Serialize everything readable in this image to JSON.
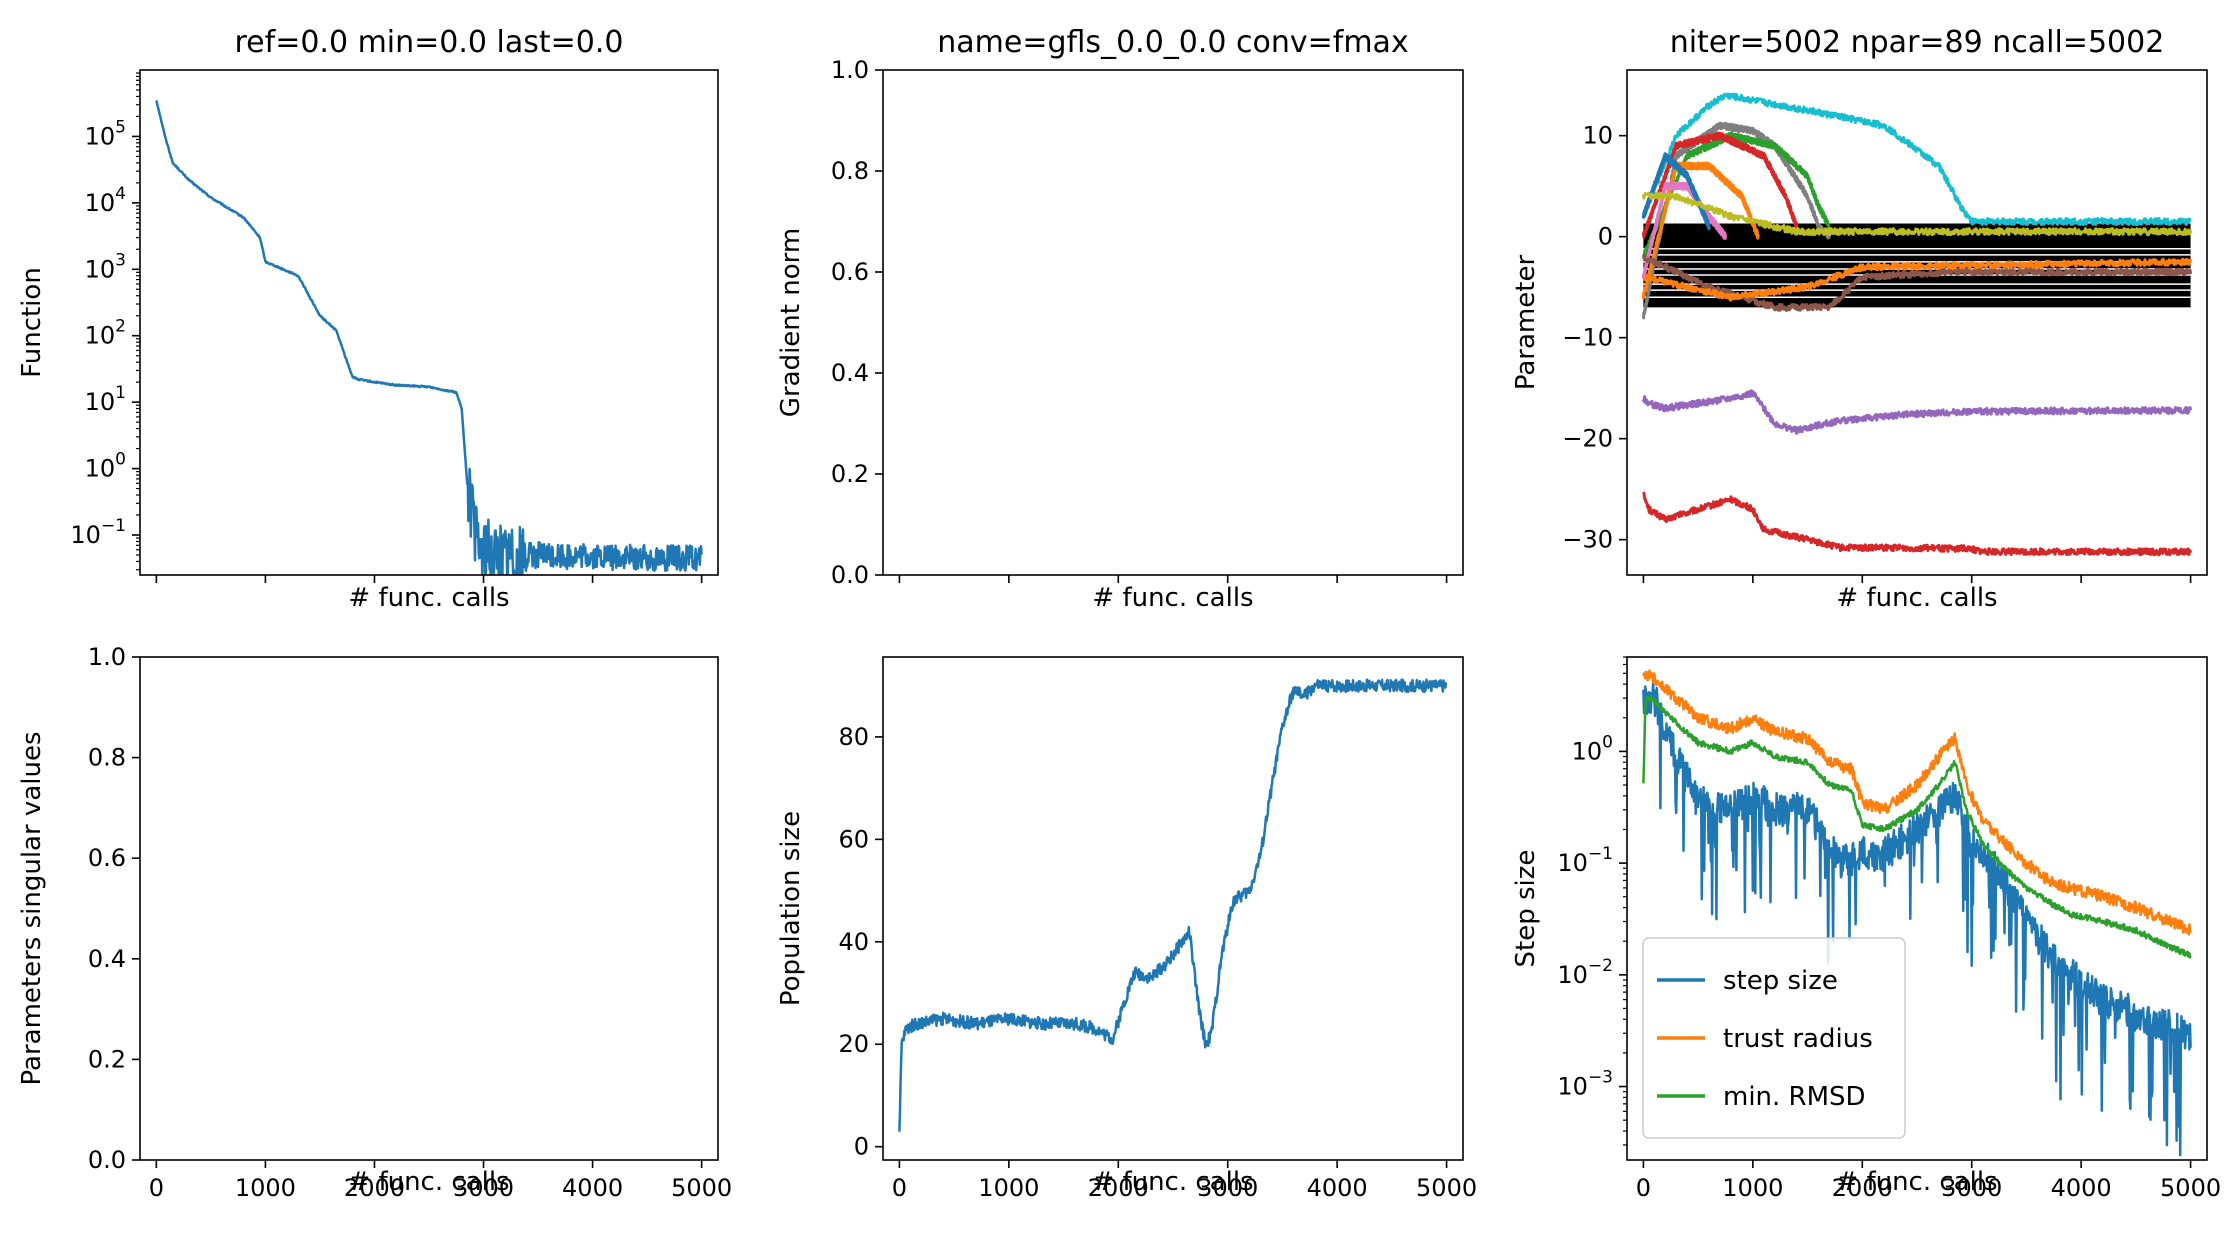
{
  "figure": {
    "colors": {
      "blue": "#1f77b4",
      "orange": "#ff7f0e",
      "green": "#2ca02c",
      "red": "#d62728",
      "purple": "#9467bd",
      "brown": "#8c564b",
      "pink": "#e377c2",
      "gray": "#7f7f7f",
      "olive": "#bcbd22",
      "cyan": "#17becf",
      "black": "#000000"
    }
  },
  "chart_data": [
    {
      "id": "function",
      "type": "line",
      "title": "ref=0.0  min=0.0  last=0.0",
      "xlabel": "# func. calls",
      "ylabel": "Function",
      "yscale": "log",
      "xlim": [
        -150,
        5150
      ],
      "ylim": [
        0.025,
        1000000
      ],
      "xticks": [
        0,
        1000,
        2000,
        3000,
        4000,
        5000
      ],
      "x_ticklabels_visible": false,
      "yticks": [
        0.1,
        1,
        10,
        100,
        1000,
        10000,
        100000
      ],
      "ytick_labels": [
        {
          "base": "10",
          "exp": "−1"
        },
        {
          "base": "10",
          "exp": "0"
        },
        {
          "base": "10",
          "exp": "1"
        },
        {
          "base": "10",
          "exp": "2"
        },
        {
          "base": "10",
          "exp": "3"
        },
        {
          "base": "10",
          "exp": "4"
        },
        {
          "base": "10",
          "exp": "5"
        }
      ],
      "series": [
        {
          "color": "#1f77b4",
          "noise_after": 2850,
          "x": [
            0,
            80,
            150,
            300,
            500,
            800,
            950,
            1000,
            1050,
            1300,
            1500,
            1650,
            1750,
            1800,
            1850,
            2000,
            2200,
            2500,
            2750,
            2800,
            2850,
            2950,
            3200,
            3500,
            3800,
            4200,
            4600,
            5000
          ],
          "y": [
            350000,
            100000,
            40000,
            22000,
            12000,
            6000,
            3000,
            1300,
            1200,
            800,
            200,
            120,
            40,
            24,
            22,
            20,
            18,
            17,
            14,
            8,
            0.6,
            0.06,
            0.05,
            0.05,
            0.048,
            0.046,
            0.045,
            0.045
          ]
        }
      ]
    },
    {
      "id": "gradient",
      "type": "line",
      "title": "name=gfls_0.0_0.0  conv=fmax",
      "xlabel": "# func. calls",
      "ylabel": "Gradient norm",
      "xlim": [
        -150,
        5150
      ],
      "ylim": [
        0,
        1
      ],
      "xticks": [
        0,
        1000,
        2000,
        3000,
        4000,
        5000
      ],
      "x_ticklabels_visible": false,
      "yticks": [
        0,
        0.2,
        0.4,
        0.6,
        0.8,
        1.0
      ],
      "ytick_labels": [
        "0.0",
        "0.2",
        "0.4",
        "0.6",
        "0.8",
        "1.0"
      ],
      "series": []
    },
    {
      "id": "parameter",
      "type": "line",
      "title": "niter=5002  npar=89  ncall=5002",
      "xlabel": "# func. calls",
      "ylabel": "Parameter",
      "xlim": [
        -150,
        5150
      ],
      "ylim": [
        -33.5,
        16.5
      ],
      "xticks": [
        0,
        1000,
        2000,
        3000,
        4000,
        5000
      ],
      "x_ticklabels_visible": false,
      "yticks": [
        -30,
        -20,
        -10,
        0,
        10
      ],
      "ytick_labels": [
        "−30",
        "−20",
        "−10",
        "0",
        "10"
      ],
      "band": {
        "color": "#000000",
        "x": [
          0,
          5000
        ],
        "y": [
          -7,
          1.3
        ]
      },
      "band_lines": {
        "color": "#ffffff",
        "y": [
          -1.2,
          -1.8,
          -2.5,
          -3.2,
          -3.8,
          -4.7,
          -5.3,
          -6.0
        ]
      },
      "series": [
        {
          "color": "#17becf",
          "x": [
            0,
            300,
            600,
            750,
            1000,
            1500,
            2200,
            2700,
            2900,
            3000,
            5000
          ],
          "y": [
            2,
            10,
            13,
            14,
            13.5,
            12.5,
            11,
            7,
            3,
            1.5,
            1.5
          ]
        },
        {
          "color": "#7f7f7f",
          "x": [
            0,
            300,
            700,
            1000,
            1200,
            1500,
            1600,
            1700
          ],
          "y": [
            -8,
            8,
            11,
            10.5,
            9,
            4,
            1,
            0
          ]
        },
        {
          "color": "#2ca02c",
          "x": [
            0,
            400,
            800,
            1200,
            1500,
            1600,
            1700
          ],
          "y": [
            -2,
            8,
            10,
            9,
            6,
            3,
            1
          ]
        },
        {
          "color": "#d62728",
          "x": [
            0,
            300,
            700,
            1100,
            1300,
            1400
          ],
          "y": [
            0,
            9,
            10,
            8,
            4,
            1
          ]
        },
        {
          "color": "#ff7f0e",
          "x": [
            0,
            300,
            600,
            900,
            1050
          ],
          "y": [
            -6,
            7,
            7,
            4,
            0
          ]
        },
        {
          "color": "#e377c2",
          "x": [
            0,
            200,
            400,
            600,
            750
          ],
          "y": [
            -4,
            5,
            5,
            2,
            0
          ]
        },
        {
          "color": "#1f77b4",
          "x": [
            0,
            200,
            400,
            600
          ],
          "y": [
            2,
            8,
            6,
            1
          ]
        },
        {
          "color": "#8c564b",
          "x": [
            0,
            600,
            1200,
            1700,
            2000,
            2800,
            5000
          ],
          "y": [
            -2,
            -5,
            -7,
            -7,
            -4,
            -3.5,
            -3.5
          ]
        },
        {
          "color": "#ff7f0e",
          "x": [
            0,
            800,
            1500,
            2000,
            5000
          ],
          "y": [
            -4,
            -6,
            -5,
            -3,
            -2.5
          ]
        },
        {
          "color": "#bcbd22",
          "x": [
            0,
            300,
            800,
            1400,
            2000,
            3000,
            5000
          ],
          "y": [
            4,
            4,
            2,
            0.5,
            0.5,
            0.5,
            0.5
          ]
        },
        {
          "color": "#9467bd",
          "x": [
            0,
            50,
            200,
            500,
            800,
            1000,
            1200,
            1400,
            1800,
            2400,
            3000,
            5000
          ],
          "y": [
            -16,
            -16.5,
            -17,
            -16.5,
            -16,
            -15.5,
            -18.5,
            -19.2,
            -18.2,
            -17.6,
            -17.3,
            -17.2
          ]
        },
        {
          "color": "#d62728",
          "x": [
            0,
            50,
            200,
            500,
            800,
            1000,
            1100,
            1500,
            1800,
            2200,
            3000,
            3100,
            5000
          ],
          "y": [
            -25.5,
            -27,
            -28,
            -27,
            -26,
            -27,
            -29,
            -30,
            -30.8,
            -30.8,
            -30.9,
            -31.2,
            -31.2
          ]
        }
      ]
    },
    {
      "id": "singular",
      "type": "line",
      "title": "",
      "xlabel": "# func. calls",
      "ylabel": "Parameters singular values",
      "xlim": [
        -150,
        5150
      ],
      "ylim": [
        0,
        1
      ],
      "xticks": [
        0,
        1000,
        2000,
        3000,
        4000,
        5000
      ],
      "xtick_labels": [
        "0",
        "1000",
        "2000",
        "3000",
        "4000",
        "5000"
      ],
      "x_ticklabels_visible": true,
      "yticks": [
        0,
        0.2,
        0.4,
        0.6,
        0.8,
        1.0
      ],
      "ytick_labels": [
        "0.0",
        "0.2",
        "0.4",
        "0.6",
        "0.8",
        "1.0"
      ],
      "series": []
    },
    {
      "id": "population",
      "type": "line",
      "title": "",
      "xlabel": "# func. calls",
      "ylabel": "Population size",
      "xlim": [
        -150,
        5150
      ],
      "ylim": [
        -2.6,
        95.6
      ],
      "xticks": [
        0,
        1000,
        2000,
        3000,
        4000,
        5000
      ],
      "xtick_labels": [
        "0",
        "1000",
        "2000",
        "3000",
        "4000",
        "5000"
      ],
      "x_ticklabels_visible": true,
      "yticks": [
        0,
        20,
        40,
        60,
        80
      ],
      "ytick_labels": [
        "0",
        "20",
        "40",
        "60",
        "80"
      ],
      "series": [
        {
          "color": "#1f77b4",
          "noise": 1.2,
          "x": [
            0,
            20,
            60,
            150,
            400,
            700,
            1000,
            1300,
            1600,
            1800,
            1950,
            2050,
            2150,
            2300,
            2450,
            2550,
            2650,
            2700,
            2750,
            2800,
            2850,
            2950,
            3050,
            3200,
            3300,
            3400,
            3500,
            3600,
            3700,
            3800,
            4000,
            4500,
            5000
          ],
          "y": [
            2,
            20,
            23,
            24,
            25,
            24,
            25,
            24,
            24,
            23,
            21,
            28,
            34,
            33,
            36,
            39,
            42,
            33,
            25,
            20,
            22,
            38,
            48,
            50,
            57,
            70,
            82,
            89,
            88,
            90,
            90,
            90,
            90
          ]
        }
      ]
    },
    {
      "id": "step",
      "type": "line",
      "title": "",
      "xlabel": "# func. calls",
      "ylabel": "Step size",
      "yscale": "log",
      "xlim": [
        -150,
        5150
      ],
      "ylim": [
        0.00022,
        7
      ],
      "xticks": [
        0,
        1000,
        2000,
        3000,
        4000,
        5000
      ],
      "xtick_labels": [
        "0",
        "1000",
        "2000",
        "3000",
        "4000",
        "5000"
      ],
      "x_ticklabels_visible": true,
      "yticks": [
        0.001,
        0.01,
        0.1,
        1
      ],
      "ytick_labels": [
        {
          "base": "10",
          "exp": "−3"
        },
        {
          "base": "10",
          "exp": "−2"
        },
        {
          "base": "10",
          "exp": "−1"
        },
        {
          "base": "10",
          "exp": "0"
        }
      ],
      "legend": {
        "position": "lower-left"
      },
      "series": [
        {
          "name": "step size",
          "color": "#1f77b4",
          "noise": 0.35,
          "spikes": true,
          "x": [
            0,
            100,
            300,
            500,
            800,
            1000,
            1200,
            1500,
            1800,
            2000,
            2200,
            2500,
            2700,
            2850,
            3000,
            3200,
            3500,
            3800,
            4200,
            4600,
            5000
          ],
          "y": [
            3,
            3,
            0.9,
            0.35,
            0.3,
            0.4,
            0.3,
            0.3,
            0.1,
            0.12,
            0.12,
            0.2,
            0.3,
            0.4,
            0.15,
            0.1,
            0.03,
            0.012,
            0.006,
            0.004,
            0.003
          ]
        },
        {
          "name": "trust radius",
          "color": "#ff7f0e",
          "noise": 0.12,
          "x": [
            0,
            100,
            300,
            500,
            800,
            1000,
            1200,
            1500,
            1700,
            1900,
            2000,
            2200,
            2500,
            2700,
            2850,
            2950,
            3100,
            3300,
            3500,
            3700,
            3900,
            4200,
            4500,
            4800,
            5000
          ],
          "y": [
            5,
            4.5,
            3,
            2,
            1.6,
            2,
            1.5,
            1.3,
            0.8,
            0.7,
            0.35,
            0.3,
            0.5,
            0.9,
            1.3,
            0.5,
            0.25,
            0.15,
            0.1,
            0.07,
            0.06,
            0.05,
            0.04,
            0.03,
            0.025
          ]
        },
        {
          "name": "min. RMSD",
          "color": "#2ca02c",
          "noise": 0.06,
          "x": [
            0,
            20,
            60,
            100,
            300,
            500,
            800,
            1000,
            1200,
            1500,
            1700,
            1900,
            2000,
            2200,
            2500,
            2700,
            2850,
            2950,
            3100,
            3300,
            3500,
            3700,
            3900,
            4200,
            4500,
            4800,
            5000
          ],
          "y": [
            0.5,
            3,
            3,
            2.8,
            1.8,
            1.2,
            1.0,
            1.2,
            0.9,
            0.8,
            0.5,
            0.45,
            0.22,
            0.2,
            0.3,
            0.5,
            0.8,
            0.3,
            0.15,
            0.09,
            0.06,
            0.045,
            0.035,
            0.03,
            0.025,
            0.018,
            0.015
          ]
        }
      ]
    }
  ]
}
